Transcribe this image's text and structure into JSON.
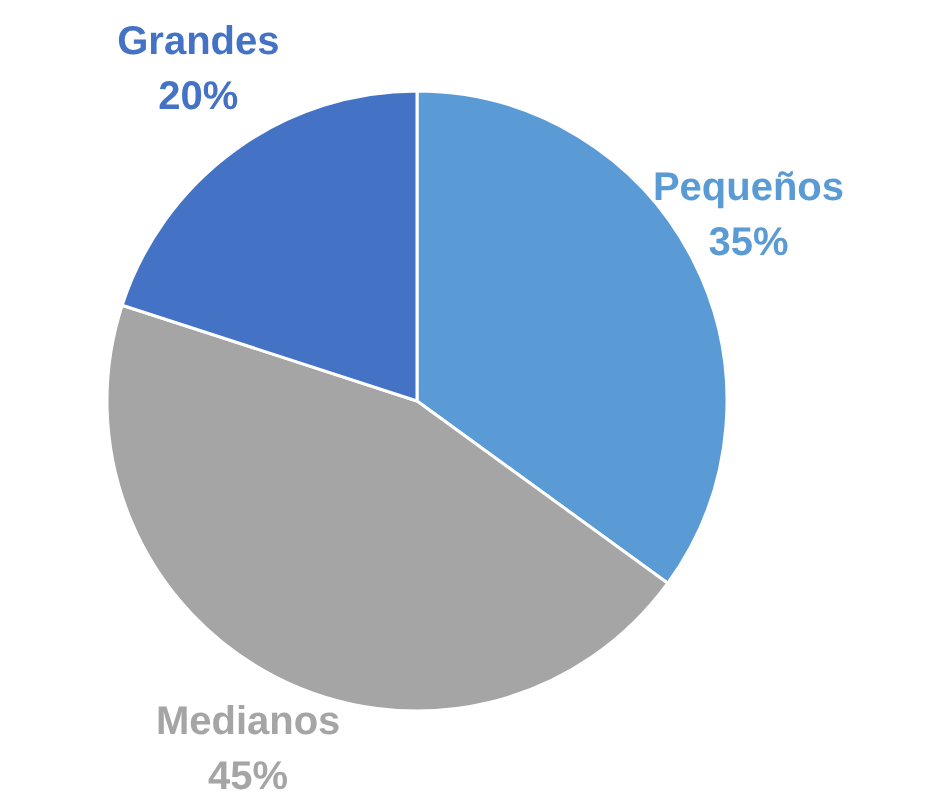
{
  "chart_data": {
    "type": "pie",
    "categories": [
      "Pequeños",
      "Medianos",
      "Grandes"
    ],
    "values": [
      35,
      45,
      20
    ],
    "colors": [
      "#5b9bd5",
      "#a5a5a5",
      "#4472c4"
    ],
    "value_labels": [
      "35%",
      "45%",
      "20%"
    ]
  }
}
